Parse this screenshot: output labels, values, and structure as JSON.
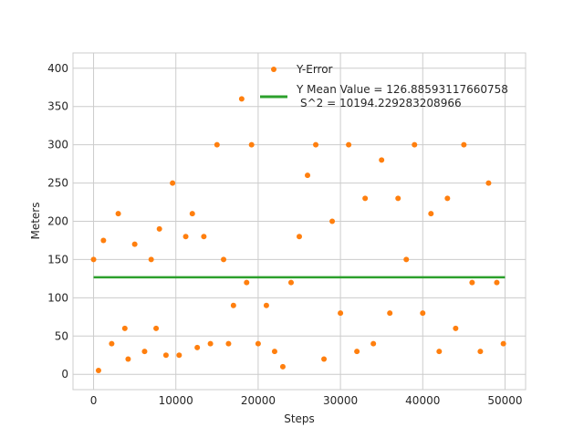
{
  "chart_data": {
    "type": "scatter",
    "title": "",
    "xlabel": "Steps",
    "ylabel": "Meters",
    "xlim": [
      -2500,
      52500
    ],
    "ylim": [
      -20,
      420
    ],
    "xticks": [
      0,
      10000,
      20000,
      30000,
      40000,
      50000
    ],
    "yticks": [
      0,
      50,
      100,
      150,
      200,
      250,
      300,
      350,
      400
    ],
    "grid": true,
    "legend_position": "top-right",
    "series": [
      {
        "name": "Y-Error",
        "kind": "scatter",
        "color": "#ff7f0e",
        "segments": [
          [
            0,
            150
          ],
          [
            600,
            5
          ],
          [
            1200,
            175
          ],
          [
            2200,
            40
          ],
          [
            3000,
            210
          ],
          [
            3800,
            60
          ],
          [
            4200,
            20
          ],
          [
            5000,
            170
          ],
          [
            6200,
            30
          ],
          [
            7000,
            150
          ],
          [
            7600,
            60
          ],
          [
            8000,
            190
          ],
          [
            8800,
            25
          ],
          [
            9600,
            250
          ],
          [
            10400,
            25
          ],
          [
            11200,
            180
          ],
          [
            12000,
            210
          ],
          [
            12600,
            35
          ],
          [
            13400,
            180
          ],
          [
            14200,
            40
          ],
          [
            15000,
            300
          ],
          [
            15800,
            150
          ],
          [
            16400,
            40
          ],
          [
            17000,
            90
          ],
          [
            18000,
            360
          ],
          [
            18600,
            120
          ],
          [
            19200,
            300
          ],
          [
            20000,
            40
          ],
          [
            21000,
            90
          ],
          [
            22000,
            30
          ],
          [
            23000,
            10
          ],
          [
            24000,
            120
          ],
          [
            25000,
            180
          ],
          [
            26000,
            260
          ],
          [
            27000,
            300
          ],
          [
            28000,
            20
          ],
          [
            29000,
            200
          ],
          [
            30000,
            80
          ],
          [
            31000,
            300
          ],
          [
            32000,
            30
          ],
          [
            33000,
            230
          ],
          [
            34000,
            40
          ],
          [
            35000,
            280
          ],
          [
            36000,
            80
          ],
          [
            37000,
            230
          ],
          [
            38000,
            150
          ],
          [
            39000,
            300
          ],
          [
            40000,
            80
          ],
          [
            41000,
            210
          ],
          [
            42000,
            30
          ],
          [
            43000,
            230
          ],
          [
            44000,
            60
          ],
          [
            45000,
            300
          ],
          [
            46000,
            120
          ],
          [
            47000,
            30
          ],
          [
            48000,
            250
          ],
          [
            49000,
            120
          ],
          [
            49800,
            40
          ]
        ]
      },
      {
        "name": "Y Mean Value = 126.88593117660758\n S^2 = 10194.229283208966",
        "kind": "line",
        "color": "#2ca02c",
        "x": [
          0,
          50000
        ],
        "y": [
          126.88593117660758,
          126.88593117660758
        ]
      }
    ],
    "mean": 126.88593117660758,
    "variance": 10194.229283208966
  }
}
